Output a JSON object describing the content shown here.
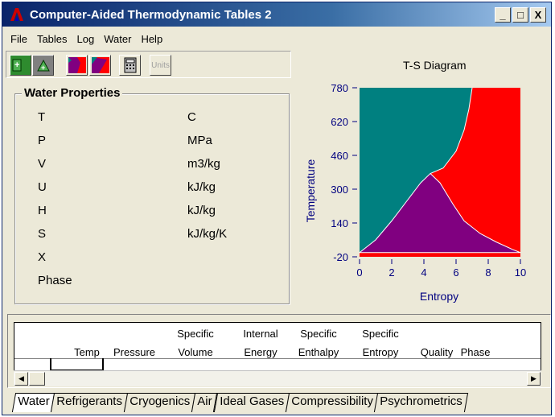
{
  "window": {
    "title": "Computer-Aided Thermodynamic Tables 2"
  },
  "title_buttons": [
    "_",
    "□",
    "X"
  ],
  "menu": [
    "File",
    "Tables",
    "Log",
    "Water",
    "Help"
  ],
  "toolbar": {
    "units_label": "Units"
  },
  "properties": {
    "title": "Water Properties",
    "rows": [
      {
        "name": "T",
        "unit": "C"
      },
      {
        "name": "P",
        "unit": "MPa"
      },
      {
        "name": "V",
        "unit": "m3/kg"
      },
      {
        "name": "U",
        "unit": "kJ/kg"
      },
      {
        "name": "H",
        "unit": "kJ/kg"
      },
      {
        "name": "S",
        "unit": "kJ/kg/K"
      },
      {
        "name": "X",
        "unit": ""
      },
      {
        "name": "Phase",
        "unit": ""
      }
    ]
  },
  "chart_data": {
    "type": "area",
    "title": "T-S Diagram",
    "xlabel": "Entropy",
    "ylabel": "Temperature",
    "xlim": [
      0,
      10
    ],
    "ylim": [
      -20,
      780
    ],
    "xticks": [
      "0",
      "2",
      "4",
      "6",
      "8",
      "10"
    ],
    "yticks": [
      "780",
      "620",
      "460",
      "300",
      "140",
      "-20"
    ],
    "regions": [
      "liquid",
      "two-phase",
      "vapor"
    ],
    "colors": {
      "left": "#008080",
      "dome": "#800080",
      "right": "#ff0000",
      "axis_text": "#000080"
    },
    "dome": {
      "x": [
        0,
        1,
        2,
        3,
        3.8,
        4.4,
        5,
        5.8,
        6.5,
        7.5,
        8.5,
        9.5,
        10
      ],
      "y": [
        0,
        60,
        150,
        250,
        330,
        374,
        330,
        230,
        150,
        90,
        50,
        15,
        0
      ]
    },
    "boundary": {
      "x": [
        4.4,
        5.2,
        6.0,
        6.5,
        6.8,
        7.0
      ],
      "y": [
        374,
        400,
        480,
        580,
        680,
        780
      ]
    }
  },
  "log_table": {
    "headers_top": [
      "",
      "",
      "Specific",
      "Internal",
      "Specific",
      "Specific",
      ""
    ],
    "headers_bottom": [
      "Temp",
      "Pressure",
      "Volume",
      "Energy",
      "Enthalpy",
      "Entropy",
      "Quality",
      "Phase"
    ]
  },
  "tabs": [
    "Water",
    "Refrigerants",
    "Cryogenics",
    "Air",
    "Ideal Gases",
    "Compressibility",
    "Psychrometrics"
  ],
  "active_tab": "Water"
}
